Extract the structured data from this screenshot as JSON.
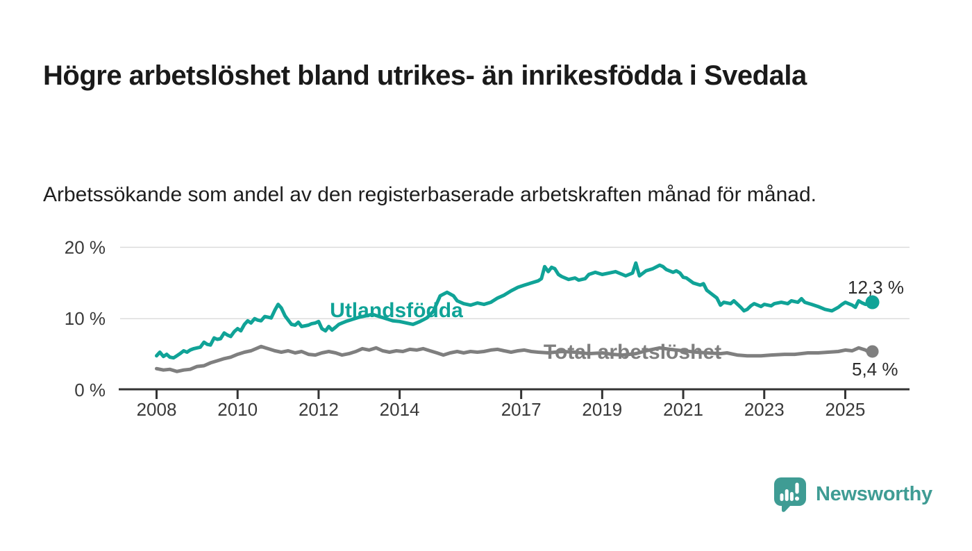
{
  "header": {
    "title": "Högre arbetslöshet bland utrikes- än inrikesfödda i Svedala",
    "subtitle": "Arbetssökande som andel av den registerbaserade arbetskraften månad för månad."
  },
  "branding": {
    "logo_text": "Newsworthy",
    "logo_icon": "newsworthy-speech-bubble-bar-chart-icon",
    "brand_color": "#3F9C94"
  },
  "chart_data": {
    "type": "line",
    "unit": "%",
    "grid": "horizontal-only",
    "xlim": [
      2007.8,
      2026.6
    ],
    "ylim": [
      0,
      21
    ],
    "x_ticks": [
      "2008",
      "2010",
      "2012",
      "2014",
      "2017",
      "2019",
      "2021",
      "2023",
      "2025"
    ],
    "x_tick_years": [
      2008,
      2010,
      2012,
      2014,
      2017,
      2019,
      2021,
      2023,
      2025
    ],
    "y_ticks": [
      {
        "value": 0,
        "label": "0 %"
      },
      {
        "value": 10,
        "label": "10 %"
      },
      {
        "value": 20,
        "label": "20 %"
      }
    ],
    "series": [
      {
        "name": "Utlandsfödda",
        "color": "#10A397",
        "end_value": 12.3,
        "end_label": "12,3 %",
        "points": [
          [
            2008.0,
            4.8
          ],
          [
            2008.08,
            5.3
          ],
          [
            2008.17,
            4.7
          ],
          [
            2008.25,
            5.0
          ],
          [
            2008.33,
            4.6
          ],
          [
            2008.42,
            4.5
          ],
          [
            2008.5,
            4.8
          ],
          [
            2008.58,
            5.1
          ],
          [
            2008.67,
            5.5
          ],
          [
            2008.75,
            5.3
          ],
          [
            2008.83,
            5.6
          ],
          [
            2008.92,
            5.8
          ],
          [
            2009.0,
            5.9
          ],
          [
            2009.08,
            6.0
          ],
          [
            2009.17,
            6.7
          ],
          [
            2009.25,
            6.4
          ],
          [
            2009.33,
            6.3
          ],
          [
            2009.42,
            7.3
          ],
          [
            2009.5,
            7.1
          ],
          [
            2009.58,
            7.2
          ],
          [
            2009.67,
            8.0
          ],
          [
            2009.75,
            7.7
          ],
          [
            2009.83,
            7.5
          ],
          [
            2009.92,
            8.2
          ],
          [
            2010.0,
            8.6
          ],
          [
            2010.08,
            8.3
          ],
          [
            2010.17,
            9.2
          ],
          [
            2010.25,
            9.7
          ],
          [
            2010.33,
            9.4
          ],
          [
            2010.42,
            10.0
          ],
          [
            2010.5,
            9.8
          ],
          [
            2010.58,
            9.7
          ],
          [
            2010.67,
            10.3
          ],
          [
            2010.75,
            10.2
          ],
          [
            2010.83,
            10.1
          ],
          [
            2010.92,
            11.2
          ],
          [
            2011.0,
            12.0
          ],
          [
            2011.08,
            11.5
          ],
          [
            2011.17,
            10.4
          ],
          [
            2011.25,
            9.8
          ],
          [
            2011.33,
            9.2
          ],
          [
            2011.42,
            9.1
          ],
          [
            2011.5,
            9.5
          ],
          [
            2011.58,
            8.9
          ],
          [
            2011.67,
            9.0
          ],
          [
            2011.75,
            9.1
          ],
          [
            2011.83,
            9.3
          ],
          [
            2011.92,
            9.4
          ],
          [
            2012.0,
            9.6
          ],
          [
            2012.08,
            8.6
          ],
          [
            2012.17,
            8.3
          ],
          [
            2012.25,
            8.9
          ],
          [
            2012.33,
            8.4
          ],
          [
            2012.42,
            8.8
          ],
          [
            2012.5,
            9.2
          ],
          [
            2012.58,
            9.4
          ],
          [
            2012.67,
            9.6
          ],
          [
            2012.83,
            9.9
          ],
          [
            2013.0,
            10.2
          ],
          [
            2013.17,
            10.4
          ],
          [
            2013.33,
            10.6
          ],
          [
            2013.5,
            10.3
          ],
          [
            2013.67,
            10.0
          ],
          [
            2013.83,
            9.7
          ],
          [
            2014.0,
            9.6
          ],
          [
            2014.17,
            9.4
          ],
          [
            2014.33,
            9.2
          ],
          [
            2014.5,
            9.6
          ],
          [
            2014.67,
            10.1
          ],
          [
            2014.83,
            11.0
          ],
          [
            2015.0,
            13.2
          ],
          [
            2015.17,
            13.7
          ],
          [
            2015.33,
            13.2
          ],
          [
            2015.42,
            12.5
          ],
          [
            2015.58,
            12.1
          ],
          [
            2015.75,
            11.9
          ],
          [
            2015.92,
            12.2
          ],
          [
            2016.08,
            12.0
          ],
          [
            2016.25,
            12.3
          ],
          [
            2016.42,
            12.9
          ],
          [
            2016.58,
            13.3
          ],
          [
            2016.75,
            13.9
          ],
          [
            2016.92,
            14.4
          ],
          [
            2017.08,
            14.7
          ],
          [
            2017.25,
            15.0
          ],
          [
            2017.42,
            15.3
          ],
          [
            2017.5,
            15.6
          ],
          [
            2017.58,
            17.3
          ],
          [
            2017.67,
            16.6
          ],
          [
            2017.75,
            17.2
          ],
          [
            2017.83,
            17.0
          ],
          [
            2017.92,
            16.2
          ],
          [
            2018.0,
            15.9
          ],
          [
            2018.17,
            15.5
          ],
          [
            2018.33,
            15.7
          ],
          [
            2018.42,
            15.4
          ],
          [
            2018.58,
            15.6
          ],
          [
            2018.67,
            16.2
          ],
          [
            2018.83,
            16.5
          ],
          [
            2019.0,
            16.2
          ],
          [
            2019.17,
            16.4
          ],
          [
            2019.33,
            16.6
          ],
          [
            2019.5,
            16.2
          ],
          [
            2019.58,
            16.0
          ],
          [
            2019.75,
            16.4
          ],
          [
            2019.83,
            17.8
          ],
          [
            2019.92,
            16.0
          ],
          [
            2020.08,
            16.7
          ],
          [
            2020.25,
            17.0
          ],
          [
            2020.42,
            17.5
          ],
          [
            2020.5,
            17.3
          ],
          [
            2020.58,
            16.9
          ],
          [
            2020.75,
            16.5
          ],
          [
            2020.83,
            16.7
          ],
          [
            2020.92,
            16.4
          ],
          [
            2021.0,
            15.8
          ],
          [
            2021.08,
            15.7
          ],
          [
            2021.25,
            15.0
          ],
          [
            2021.42,
            14.7
          ],
          [
            2021.5,
            14.9
          ],
          [
            2021.58,
            14.0
          ],
          [
            2021.67,
            13.6
          ],
          [
            2021.83,
            12.9
          ],
          [
            2021.92,
            11.9
          ],
          [
            2022.0,
            12.3
          ],
          [
            2022.17,
            12.1
          ],
          [
            2022.25,
            12.5
          ],
          [
            2022.42,
            11.6
          ],
          [
            2022.5,
            11.1
          ],
          [
            2022.58,
            11.3
          ],
          [
            2022.67,
            11.8
          ],
          [
            2022.75,
            12.1
          ],
          [
            2022.92,
            11.7
          ],
          [
            2023.0,
            12.0
          ],
          [
            2023.17,
            11.8
          ],
          [
            2023.25,
            12.1
          ],
          [
            2023.42,
            12.3
          ],
          [
            2023.58,
            12.1
          ],
          [
            2023.67,
            12.5
          ],
          [
            2023.83,
            12.3
          ],
          [
            2023.92,
            12.8
          ],
          [
            2024.0,
            12.3
          ],
          [
            2024.17,
            12.0
          ],
          [
            2024.33,
            11.7
          ],
          [
            2024.5,
            11.3
          ],
          [
            2024.67,
            11.1
          ],
          [
            2024.83,
            11.6
          ],
          [
            2024.92,
            12.0
          ],
          [
            2025.0,
            12.3
          ],
          [
            2025.17,
            11.9
          ],
          [
            2025.25,
            11.6
          ],
          [
            2025.33,
            12.5
          ],
          [
            2025.42,
            12.2
          ],
          [
            2025.5,
            12.0
          ],
          [
            2025.67,
            12.3
          ]
        ]
      },
      {
        "name": "Total arbetslöshet",
        "color": "#7F7F7F",
        "end_value": 5.4,
        "end_label": "5,4 %",
        "points": [
          [
            2008.0,
            3.0
          ],
          [
            2008.17,
            2.8
          ],
          [
            2008.33,
            2.9
          ],
          [
            2008.5,
            2.6
          ],
          [
            2008.67,
            2.8
          ],
          [
            2008.83,
            2.9
          ],
          [
            2009.0,
            3.3
          ],
          [
            2009.17,
            3.4
          ],
          [
            2009.33,
            3.8
          ],
          [
            2009.5,
            4.1
          ],
          [
            2009.67,
            4.4
          ],
          [
            2009.83,
            4.6
          ],
          [
            2010.0,
            5.0
          ],
          [
            2010.17,
            5.3
          ],
          [
            2010.33,
            5.5
          ],
          [
            2010.5,
            5.9
          ],
          [
            2010.58,
            6.1
          ],
          [
            2010.75,
            5.8
          ],
          [
            2010.92,
            5.5
          ],
          [
            2011.08,
            5.3
          ],
          [
            2011.25,
            5.5
          ],
          [
            2011.42,
            5.2
          ],
          [
            2011.58,
            5.4
          ],
          [
            2011.75,
            5.0
          ],
          [
            2011.92,
            4.9
          ],
          [
            2012.08,
            5.2
          ],
          [
            2012.25,
            5.4
          ],
          [
            2012.42,
            5.2
          ],
          [
            2012.58,
            4.9
          ],
          [
            2012.75,
            5.1
          ],
          [
            2012.92,
            5.4
          ],
          [
            2013.08,
            5.8
          ],
          [
            2013.25,
            5.6
          ],
          [
            2013.42,
            5.9
          ],
          [
            2013.58,
            5.5
          ],
          [
            2013.75,
            5.3
          ],
          [
            2013.92,
            5.5
          ],
          [
            2014.08,
            5.4
          ],
          [
            2014.25,
            5.7
          ],
          [
            2014.42,
            5.6
          ],
          [
            2014.58,
            5.8
          ],
          [
            2014.75,
            5.5
          ],
          [
            2014.92,
            5.2
          ],
          [
            2015.08,
            4.9
          ],
          [
            2015.25,
            5.2
          ],
          [
            2015.42,
            5.4
          ],
          [
            2015.58,
            5.2
          ],
          [
            2015.75,
            5.4
          ],
          [
            2015.92,
            5.3
          ],
          [
            2016.08,
            5.4
          ],
          [
            2016.25,
            5.6
          ],
          [
            2016.42,
            5.7
          ],
          [
            2016.58,
            5.5
          ],
          [
            2016.75,
            5.3
          ],
          [
            2016.92,
            5.5
          ],
          [
            2017.08,
            5.6
          ],
          [
            2017.25,
            5.4
          ],
          [
            2017.42,
            5.3
          ],
          [
            2017.67,
            5.2
          ],
          [
            2018.0,
            5.4
          ],
          [
            2018.33,
            5.3
          ],
          [
            2018.67,
            5.1
          ],
          [
            2019.0,
            5.2
          ],
          [
            2019.25,
            5.0
          ],
          [
            2019.5,
            4.9
          ],
          [
            2019.83,
            5.1
          ],
          [
            2020.08,
            5.5
          ],
          [
            2020.42,
            5.9
          ],
          [
            2020.67,
            5.7
          ],
          [
            2021.0,
            5.5
          ],
          [
            2021.33,
            5.3
          ],
          [
            2021.58,
            5.2
          ],
          [
            2021.92,
            5.1
          ],
          [
            2022.08,
            5.2
          ],
          [
            2022.33,
            4.9
          ],
          [
            2022.58,
            4.8
          ],
          [
            2022.92,
            4.8
          ],
          [
            2023.17,
            4.9
          ],
          [
            2023.5,
            5.0
          ],
          [
            2023.75,
            5.0
          ],
          [
            2024.08,
            5.2
          ],
          [
            2024.33,
            5.2
          ],
          [
            2024.58,
            5.3
          ],
          [
            2024.83,
            5.4
          ],
          [
            2025.0,
            5.6
          ],
          [
            2025.17,
            5.5
          ],
          [
            2025.33,
            5.9
          ],
          [
            2025.5,
            5.6
          ],
          [
            2025.58,
            5.3
          ],
          [
            2025.67,
            5.4
          ]
        ]
      }
    ]
  }
}
